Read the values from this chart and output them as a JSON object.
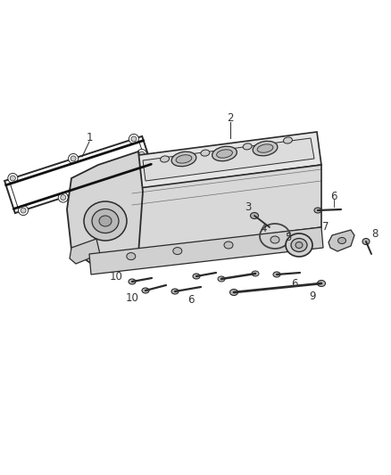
{
  "background_color": "#ffffff",
  "fig_width": 4.38,
  "fig_height": 5.33,
  "dpi": 100,
  "line_color": "#2a2a2a",
  "body_fill": "#e0e0e0",
  "body_fill2": "#d0d0d0",
  "body_fill3": "#c8c8c8",
  "dark_fill": "#555555",
  "light_fill": "#eeeeee"
}
